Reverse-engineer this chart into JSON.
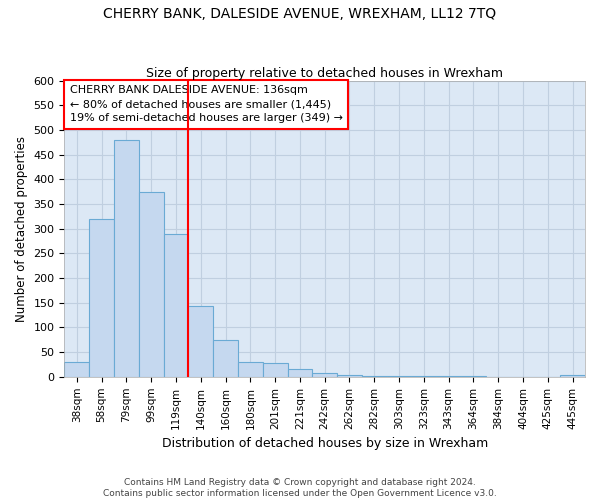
{
  "title": "CHERRY BANK, DALESIDE AVENUE, WREXHAM, LL12 7TQ",
  "subtitle": "Size of property relative to detached houses in Wrexham",
  "xlabel": "Distribution of detached houses by size in Wrexham",
  "ylabel": "Number of detached properties",
  "footer1": "Contains HM Land Registry data © Crown copyright and database right 2024.",
  "footer2": "Contains public sector information licensed under the Open Government Licence v3.0.",
  "bar_labels": [
    "38sqm",
    "58sqm",
    "79sqm",
    "99sqm",
    "119sqm",
    "140sqm",
    "160sqm",
    "180sqm",
    "201sqm",
    "221sqm",
    "242sqm",
    "262sqm",
    "282sqm",
    "303sqm",
    "323sqm",
    "343sqm",
    "364sqm",
    "384sqm",
    "404sqm",
    "425sqm",
    "445sqm"
  ],
  "bar_values": [
    30,
    320,
    480,
    375,
    290,
    143,
    75,
    30,
    28,
    15,
    8,
    4,
    2,
    2,
    2,
    2,
    2,
    0,
    0,
    0,
    4
  ],
  "bar_color": "#c5d8ef",
  "bar_edge_color": "#6aaad4",
  "grid_color": "#c0cfe0",
  "background_color": "#dce8f5",
  "marker_color": "red",
  "marker_bar_index": 5,
  "annotation_line1": "CHERRY BANK DALESIDE AVENUE: 136sqm",
  "annotation_line2": "← 80% of detached houses are smaller (1,445)",
  "annotation_line3": "19% of semi-detached houses are larger (349) →",
  "annotation_box_color": "white",
  "annotation_box_edge_color": "red",
  "ylim": [
    0,
    600
  ],
  "yticks": [
    0,
    50,
    100,
    150,
    200,
    250,
    300,
    350,
    400,
    450,
    500,
    550,
    600
  ],
  "title_fontsize": 10,
  "subtitle_fontsize": 9
}
